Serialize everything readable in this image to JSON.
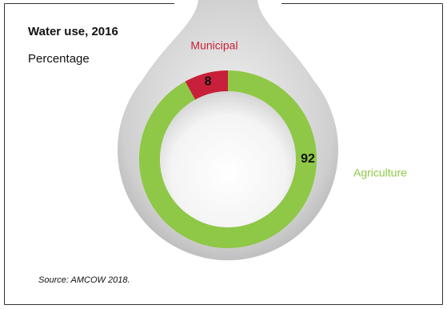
{
  "chart_data": {
    "type": "pie",
    "donut": true,
    "title": "Water use, 2016",
    "subtitle": "Percentage",
    "categories": [
      "Municipal",
      "Agriculture"
    ],
    "values": [
      8,
      92
    ],
    "colors": [
      "#c8203a",
      "#8fc846"
    ],
    "direction": "counterclockwise",
    "source": "Source: AMCOW 2018."
  }
}
